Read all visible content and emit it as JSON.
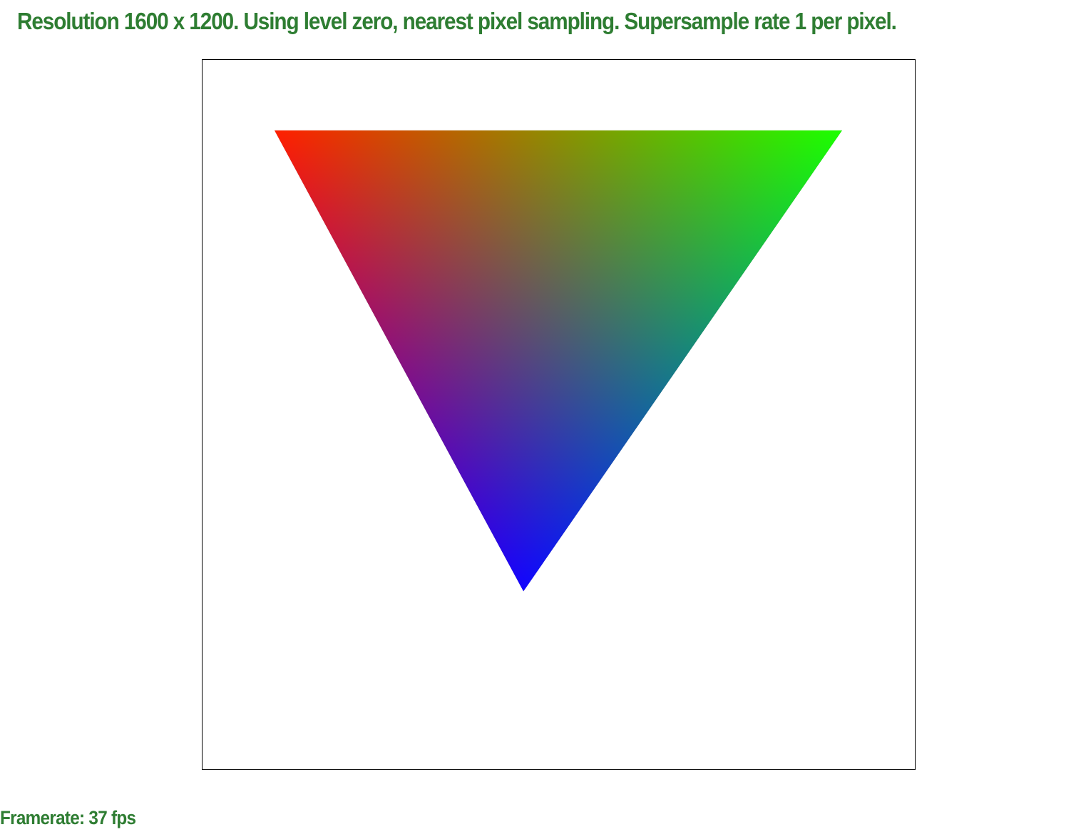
{
  "header": {
    "status_text": "Resolution 1600 x 1200. Using level zero, nearest pixel sampling. Supersample rate 1 per pixel."
  },
  "footer": {
    "framerate_text": "Framerate: 37 fps"
  },
  "colors": {
    "text": "#2e7d32",
    "background": "#ffffff",
    "frame_border": "#000000",
    "vertex_top_left": "#ff0000",
    "vertex_top_right": "#00ff00",
    "vertex_bottom": "#0000ff"
  },
  "scene": {
    "shape": "triangle",
    "shading": "per-vertex color interpolation (red, green, blue)"
  }
}
